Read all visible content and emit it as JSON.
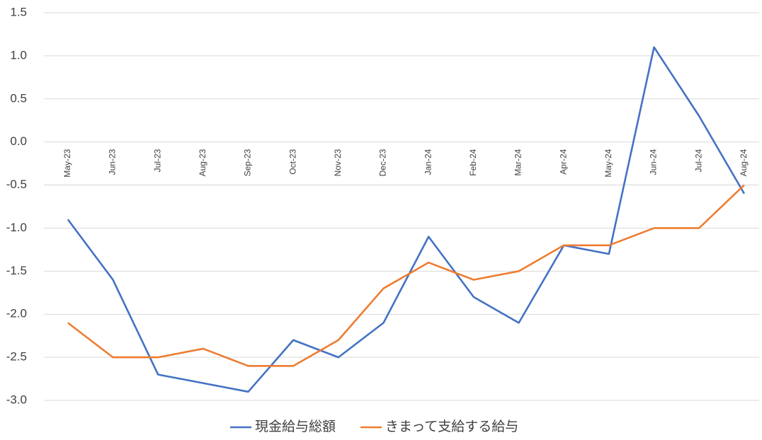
{
  "chart_data": {
    "type": "line",
    "categories": [
      "May-23",
      "Jun-23",
      "Jul-23",
      "Aug-23",
      "Sep-23",
      "Oct-23",
      "Nov-23",
      "Dec-23",
      "Jan-24",
      "Feb-24",
      "Mar-24",
      "Apr-24",
      "May-24",
      "Jun-24",
      "Jul-24",
      "Aug-24"
    ],
    "series": [
      {
        "name": "現金給与総額",
        "color": "#4472c4",
        "values": [
          -0.9,
          -1.6,
          -2.7,
          -2.8,
          -2.9,
          -2.3,
          -2.5,
          -2.1,
          -1.1,
          -1.8,
          -2.1,
          -1.2,
          -1.3,
          1.1,
          0.3,
          -0.6
        ]
      },
      {
        "name": "きまって支給する給与",
        "color": "#ed7d31",
        "values": [
          -2.1,
          -2.5,
          -2.5,
          -2.4,
          -2.6,
          -2.6,
          -2.3,
          -1.7,
          -1.4,
          -1.6,
          -1.5,
          -1.2,
          -1.2,
          -1.0,
          -1.0,
          -0.5
        ]
      }
    ],
    "ylim": [
      -3,
      1.5
    ],
    "yticks": [
      1.5,
      {
        "value": 1,
        "label": "1.0"
      },
      0.5,
      {
        "value": 0,
        "label": "0.0"
      },
      -0.5,
      {
        "value": -1,
        "label": "-1.0"
      },
      -1.5,
      {
        "value": -2,
        "label": "-2.0"
      },
      -2.5,
      {
        "value": -3,
        "label": "-3.0"
      }
    ],
    "grid": true,
    "legend": "bottom"
  }
}
